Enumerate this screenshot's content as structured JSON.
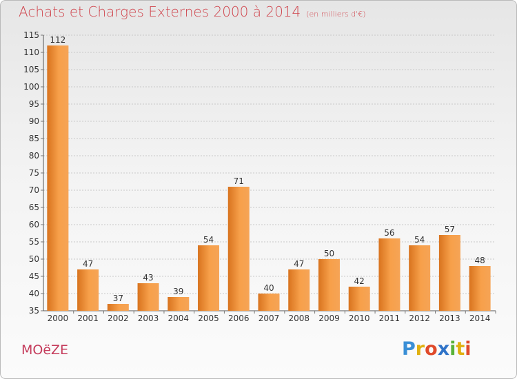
{
  "title": "Achats et Charges Externes 2000 à 2014",
  "unit": "(en milliers d'€)",
  "town": "MOëZE",
  "brand": {
    "letters": [
      "P",
      "r",
      "o",
      "x",
      "i",
      "t",
      "i"
    ],
    "colors": [
      "#3a8fd6",
      "#e0b010",
      "#e04a2a",
      "#2f73c8",
      "#59b238",
      "#e0b010",
      "#e04a2a"
    ]
  },
  "chart_data": {
    "type": "bar",
    "categories": [
      "2000",
      "2001",
      "2002",
      "2003",
      "2004",
      "2005",
      "2006",
      "2007",
      "2008",
      "2009",
      "2010",
      "2011",
      "2012",
      "2013",
      "2014"
    ],
    "values": [
      112,
      47,
      37,
      43,
      39,
      54,
      71,
      40,
      47,
      50,
      42,
      56,
      54,
      57,
      48
    ],
    "ylim": [
      35,
      115
    ],
    "yticks": [
      35,
      40,
      45,
      50,
      55,
      60,
      65,
      70,
      75,
      80,
      85,
      90,
      95,
      100,
      105,
      110,
      115
    ],
    "grid": "horizontal-dashed",
    "bar_color": "#f09a44"
  }
}
